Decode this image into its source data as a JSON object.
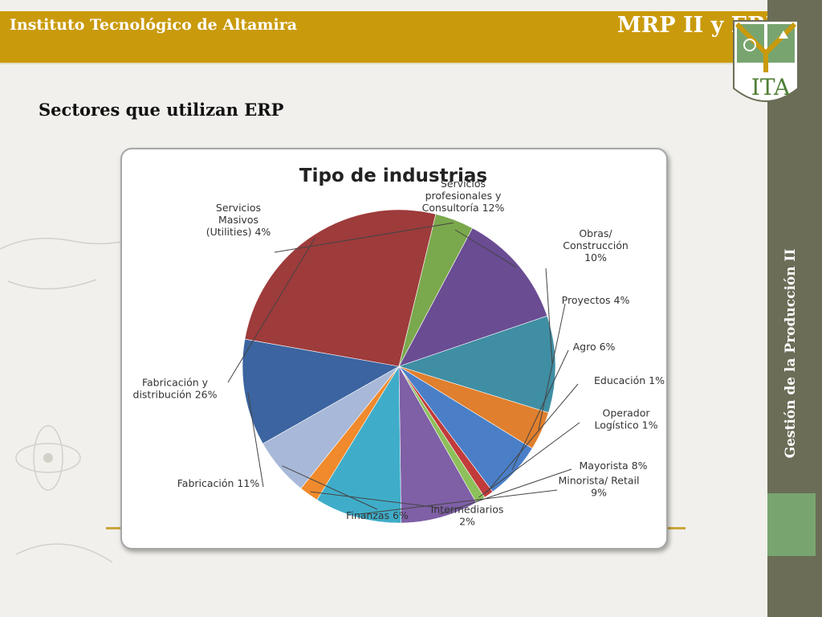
{
  "header": {
    "institution": "Instituto Tecnológico de Altamira",
    "course_title": "MRP II y ERP"
  },
  "sidebar": {
    "vertical_text": "Gestión de la Producción II"
  },
  "logo": {
    "text": "ITA",
    "icon": "ita-shield-logo"
  },
  "slide": {
    "section_title": "Sectores que utilizan ERP"
  },
  "colors": {
    "header": "#c99a0b",
    "sidebar": "#6b6d57",
    "sidebar_accent": "#78a56f",
    "gold_line": "#c9a63a"
  },
  "chart_data": {
    "type": "pie",
    "title": "Tipo de industrias",
    "legend": "none",
    "slices": [
      {
        "label_lines": [
          "Servicios",
          "profesionales y",
          "Consultoría 12%"
        ],
        "value": 12,
        "color": "#6a4c93"
      },
      {
        "label_lines": [
          "Obras/",
          "Construcción",
          "10%"
        ],
        "value": 10,
        "color": "#3f8ea3"
      },
      {
        "label_lines": [
          "Proyectos 4%"
        ],
        "value": 4,
        "color": "#e07f2d"
      },
      {
        "label_lines": [
          "Agro 6%"
        ],
        "value": 6,
        "color": "#4a7fc8"
      },
      {
        "label_lines": [
          "Educación 1%"
        ],
        "value": 1,
        "color": "#c23b3b"
      },
      {
        "label_lines": [
          "Operador",
          "Logístico 1%"
        ],
        "value": 1,
        "color": "#8dc05a"
      },
      {
        "label_lines": [
          "Mayorista 8%"
        ],
        "value": 8,
        "color": "#7f5fa6"
      },
      {
        "label_lines": [
          "Minorista/ Retail",
          "9%"
        ],
        "value": 9,
        "color": "#3fadc9"
      },
      {
        "label_lines": [
          "Intermediarios",
          "2%"
        ],
        "value": 2,
        "color": "#f08a2c"
      },
      {
        "label_lines": [
          "Finanzas 6%"
        ],
        "value": 6,
        "color": "#a8b8d8"
      },
      {
        "label_lines": [
          "Fabricación 11%"
        ],
        "value": 11,
        "color": "#3b64a0"
      },
      {
        "label_lines": [
          "Fabricación y",
          "distribución 26%"
        ],
        "value": 26,
        "color": "#9e3b3b"
      },
      {
        "label_lines": [
          "Servicios",
          "Masivos",
          "(Utilities) 4%"
        ],
        "value": 4,
        "color": "#7aa84c"
      }
    ]
  }
}
